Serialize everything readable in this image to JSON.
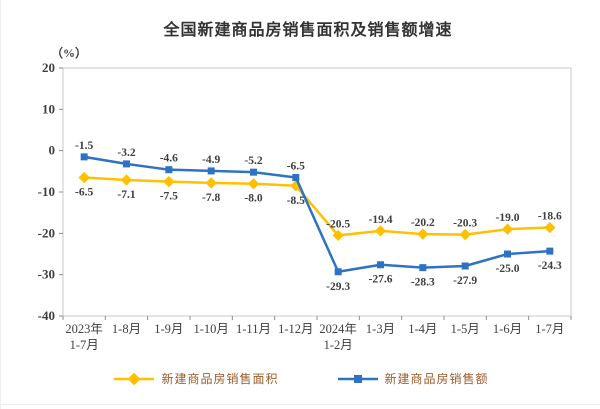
{
  "page": {
    "title": "全国新建商品房销售面积及销售额增速",
    "unit_label": "（%）"
  },
  "chart_data": {
    "type": "line",
    "title": "全国新建商品房销售面积及销售额增速",
    "ylabel": "（%）",
    "xlabel": "",
    "ylim": [
      -40,
      20
    ],
    "yticks": [
      20,
      10,
      0,
      -10,
      -20,
      -30,
      -40
    ],
    "grid": false,
    "legend_position": "bottom",
    "categories": [
      [
        "2023年",
        "1-7月"
      ],
      [
        "1-8月"
      ],
      [
        "1-9月"
      ],
      [
        "1-10月"
      ],
      [
        "1-11月"
      ],
      [
        "1-12月"
      ],
      [
        "2024年",
        "1-2月"
      ],
      [
        "1-3月"
      ],
      [
        "1-4月"
      ],
      [
        "1-5月"
      ],
      [
        "1-6月"
      ],
      [
        "1-7月"
      ]
    ],
    "series": [
      {
        "name": "新建商品房销售面积",
        "color": "#FFC000",
        "marker": "diamond",
        "values": [
          -6.5,
          -7.1,
          -7.5,
          -7.8,
          -8.0,
          -8.5,
          -20.5,
          -19.4,
          -20.2,
          -20.3,
          -19.0,
          -18.6
        ],
        "label_side": [
          "below",
          "below",
          "below",
          "below",
          "below",
          "below",
          "above",
          "above",
          "above",
          "above",
          "above",
          "above"
        ]
      },
      {
        "name": "新建商品房销售额",
        "color": "#2E72C6",
        "marker": "square",
        "values": [
          -1.5,
          -3.2,
          -4.6,
          -4.9,
          -5.2,
          -6.5,
          -29.3,
          -27.6,
          -28.3,
          -27.9,
          -25.0,
          -24.3
        ],
        "label_side": [
          "above",
          "above",
          "above",
          "above",
          "above",
          "above",
          "below",
          "below",
          "below",
          "below",
          "below",
          "below"
        ]
      }
    ]
  },
  "colors": {
    "axis_box": "#c8c8c8",
    "tick": "#8c8c8c",
    "tick_text": "#404040",
    "data_label_text": "#3f3f3f",
    "legend_text": "#9C5B2B",
    "title_text": "#333333"
  }
}
